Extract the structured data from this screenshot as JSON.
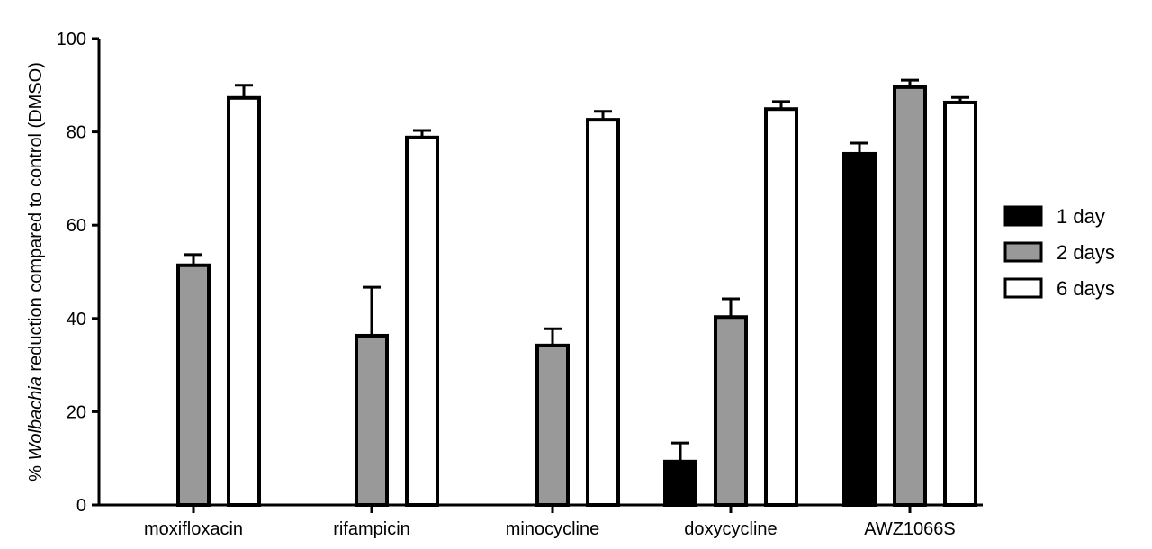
{
  "chart_data": {
    "type": "bar",
    "title": "",
    "xlabel": "",
    "ylabel_prefix": "% ",
    "ylabel_italic": "Wolbachia",
    "ylabel_suffix": " reduction compared to control (DMSO)",
    "ylim": [
      0,
      100
    ],
    "yticks": [
      "0",
      "20",
      "40",
      "60",
      "80",
      "100"
    ],
    "categories": [
      "moxifloxacin",
      "rifampicin",
      "minocycline",
      "doxycycline",
      "AWZ1066S"
    ],
    "series": [
      {
        "name": "1 day",
        "color": "#000000",
        "values": [
          null,
          null,
          null,
          9.3,
          75.3
        ],
        "errors": [
          null,
          null,
          null,
          4.0,
          2.3
        ]
      },
      {
        "name": "2 days",
        "color": "#999999",
        "values": [
          51.4,
          36.3,
          34.2,
          40.3,
          89.6
        ],
        "errors": [
          2.3,
          10.4,
          3.6,
          3.9,
          1.5
        ]
      },
      {
        "name": "6 days",
        "color": "#ffffff",
        "values": [
          87.3,
          78.8,
          82.6,
          84.9,
          86.3
        ],
        "errors": [
          2.7,
          1.5,
          1.8,
          1.6,
          1.1
        ]
      }
    ],
    "legend_position": "right",
    "grid": false
  }
}
